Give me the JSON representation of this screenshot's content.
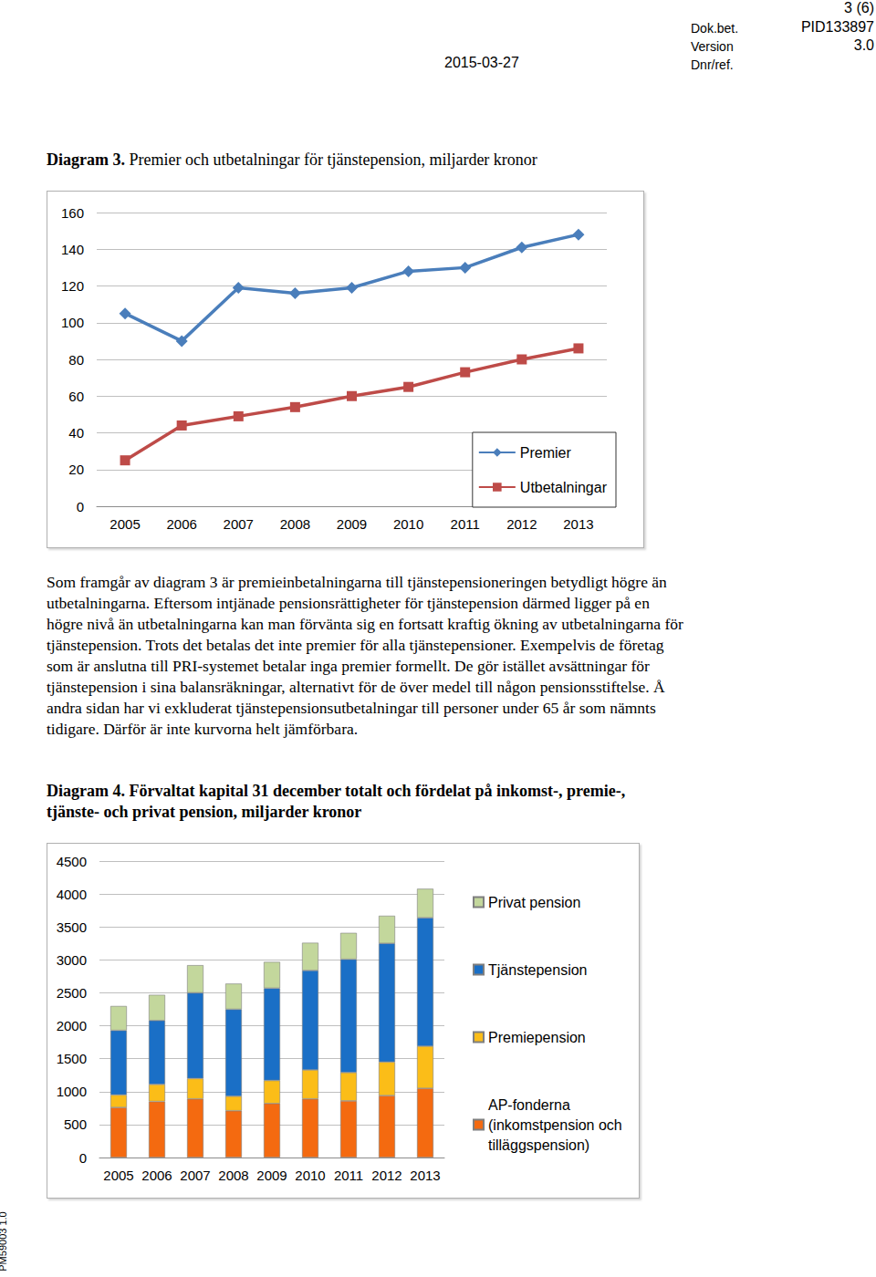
{
  "header": {
    "page": "3 (6)",
    "doc_label": "Dok.bet.",
    "doc_id": "PID133897",
    "version_label": "Version",
    "version": "3.0",
    "date": "2015-03-27",
    "ref_label": "Dnr/ref."
  },
  "side_text": "PM59003 1.0",
  "paragraph": "Som framgår av diagram 3 är premieinbetalningarna till tjänstepensioneringen betydligt högre än utbetalningarna. Eftersom intjänade pensionsrättigheter för tjänstepension därmed ligger på en högre nivå än utbetalningarna kan man förvänta sig en fortsatt kraftig ökning av utbetalningarna för tjänstepension. Trots det betalas det inte premier för alla tjänstepensioner. Exempelvis de företag som är anslutna till PRI-systemet betalar inga premier formellt. De gör istället avsättningar för tjänstepension i sina balansräkningar, alternativt för de över medel till någon pensionsstiftelse. Å andra sidan har vi exkluderat tjänstepensionsutbetalningar till personer under 65 år som nämnts tidigare. Därför är inte kurvorna helt jämförbara.",
  "chart_data": [
    {
      "type": "line",
      "title": "Diagram 3. Premier och utbetalningar för tjänstepension, miljarder kronor",
      "categories": [
        "2005",
        "2006",
        "2007",
        "2008",
        "2009",
        "2010",
        "2011",
        "2012",
        "2013"
      ],
      "series": [
        {
          "name": "Premier",
          "color": "#4a7ebb",
          "marker": "diamond",
          "values": [
            105,
            90,
            119,
            116,
            119,
            128,
            130,
            141,
            148
          ]
        },
        {
          "name": "Utbetalningar",
          "color": "#be4b48",
          "marker": "square",
          "values": [
            25,
            44,
            49,
            54,
            60,
            65,
            73,
            80,
            86
          ]
        }
      ],
      "ylim": [
        0,
        160
      ],
      "yticks": [
        0,
        20,
        40,
        60,
        80,
        100,
        120,
        140,
        160
      ],
      "grid": true,
      "legend": "lower right"
    },
    {
      "type": "bar",
      "title": "Diagram 4. Förvaltat kapital 31 december totalt och fördelat på inkomst-, premie-, tjänste- och privat pension, miljarder kronor",
      "categories": [
        "2005",
        "2006",
        "2007",
        "2008",
        "2009",
        "2010",
        "2011",
        "2012",
        "2013"
      ],
      "series": [
        {
          "name": "AP-fonderna (inkomstpension och tilläggspension)",
          "color": "#f46a10",
          "values": [
            760,
            850,
            890,
            710,
            820,
            890,
            860,
            940,
            1050
          ]
        },
        {
          "name": "Premiepension",
          "color": "#fbbd18",
          "values": [
            190,
            260,
            310,
            220,
            350,
            440,
            430,
            510,
            640
          ]
        },
        {
          "name": "Tjänstepension",
          "color": "#1a6fc6",
          "values": [
            980,
            970,
            1300,
            1320,
            1400,
            1510,
            1720,
            1800,
            1950
          ]
        },
        {
          "name": "Privat pension",
          "color": "#c3d79c",
          "values": [
            370,
            390,
            420,
            390,
            400,
            420,
            400,
            420,
            440
          ]
        }
      ],
      "ylim": [
        0,
        4500
      ],
      "yticks": [
        0,
        500,
        1000,
        1500,
        2000,
        2500,
        3000,
        3500,
        4000,
        4500
      ],
      "grid": true,
      "stacked": true,
      "legend": "right"
    }
  ]
}
